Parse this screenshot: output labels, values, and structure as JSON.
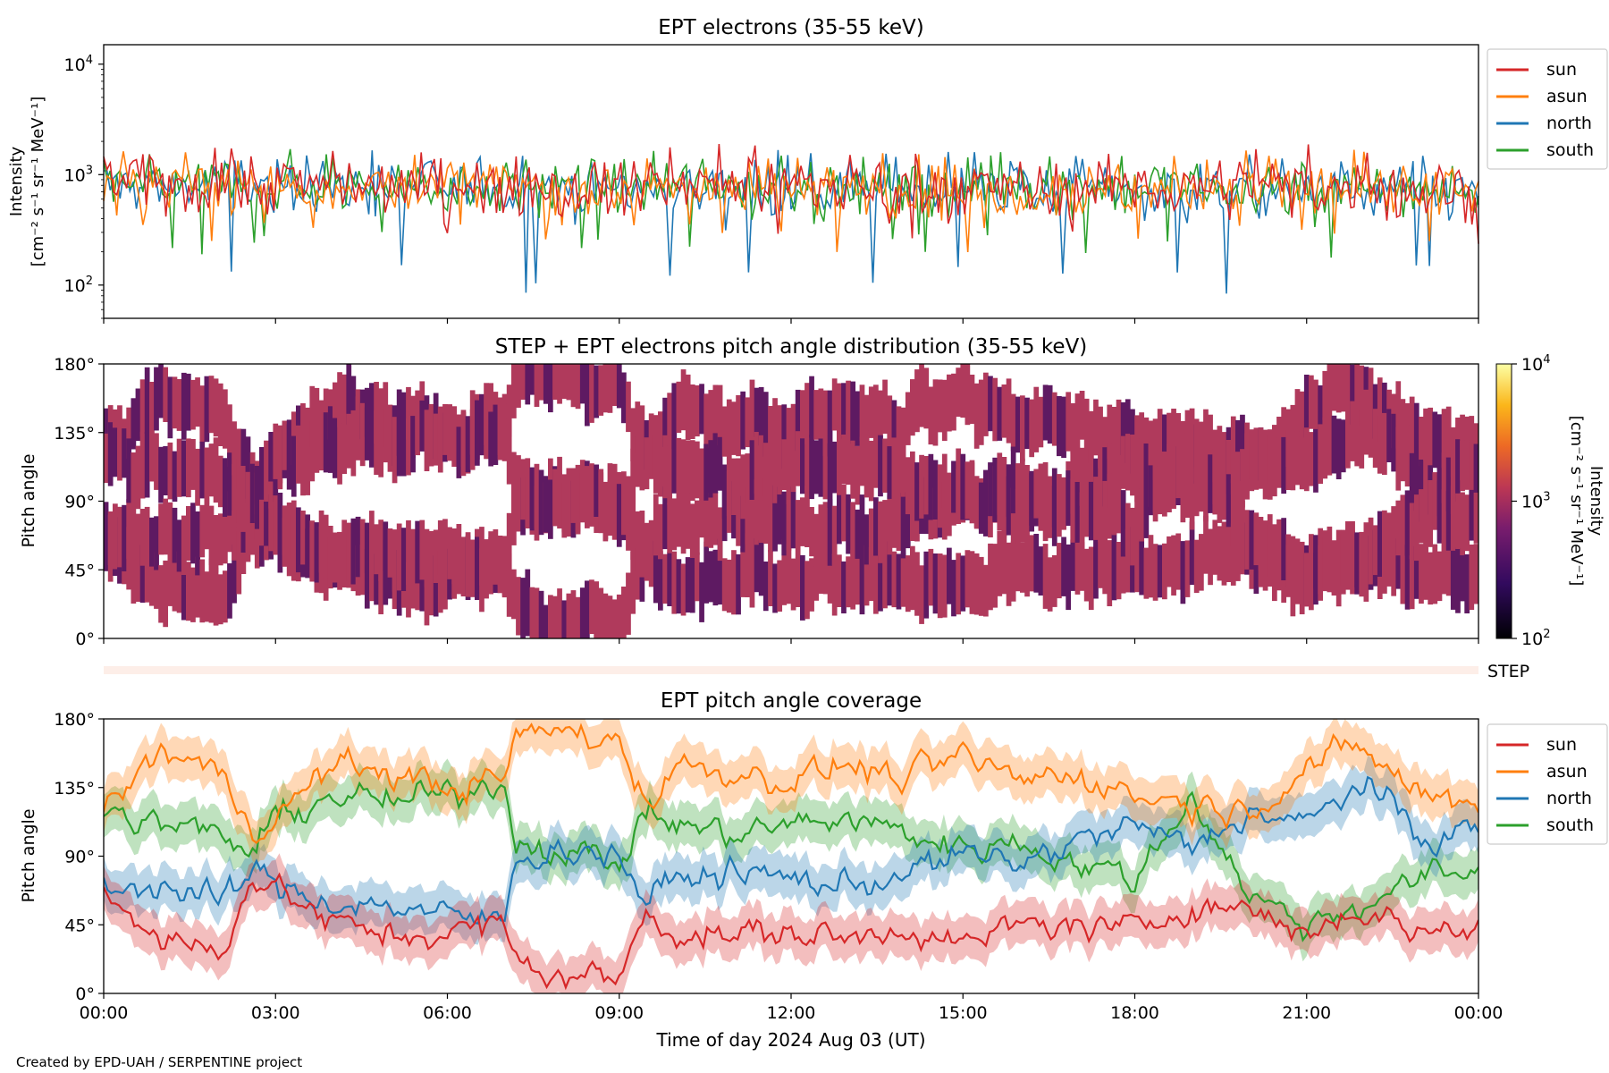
{
  "colors": {
    "sun": "#d62728",
    "asun": "#ff7f0e",
    "north": "#1f77b4",
    "south": "#2ca02c",
    "pad_fill": "#b03a5c",
    "pad_dark": "#5e1a62",
    "step_strip": "#fdeee8"
  },
  "footer": "Created by EPD-UAH / SERPENTINE project",
  "step_label": "STEP",
  "chart_data": [
    {
      "type": "line",
      "title": "EPT electrons (35-55 keV)",
      "ylabel_line1": "Intensity",
      "ylabel_line2": "[cm⁻² s⁻¹ sr⁻¹ MeV⁻¹]",
      "yscale": "log",
      "ylim": [
        50,
        15000
      ],
      "yticks": [
        {
          "value": 100,
          "base": "10",
          "exp": "2"
        },
        {
          "value": 1000,
          "base": "10",
          "exp": "3"
        },
        {
          "value": 10000,
          "base": "10",
          "exp": "4"
        }
      ],
      "x_range_hours": [
        0,
        24
      ],
      "legend": [
        "sun",
        "asun",
        "north",
        "south"
      ],
      "legend_position": "outside-right-top",
      "series_summary": [
        {
          "name": "sun",
          "typical": 850,
          "min": 230,
          "max": 1900
        },
        {
          "name": "asun",
          "typical": 800,
          "min": 180,
          "max": 1700
        },
        {
          "name": "north",
          "typical": 800,
          "min": 80,
          "max": 1800
        },
        {
          "name": "south",
          "typical": 820,
          "min": 170,
          "max": 1700
        }
      ]
    },
    {
      "type": "heatmap",
      "title": "STEP + EPT electrons pitch angle distribution (35-55 keV)",
      "ylabel": "Pitch angle",
      "ylim": [
        0,
        180
      ],
      "yticks": [
        "0°",
        "45°",
        "90°",
        "135°",
        "180°"
      ],
      "colorbar": {
        "scale": "log",
        "range": [
          100,
          10000
        ],
        "ticks": [
          {
            "base": "10",
            "exp": "2"
          },
          {
            "base": "10",
            "exp": "3"
          },
          {
            "base": "10",
            "exp": "4"
          }
        ],
        "label_line1": "Intensity",
        "label_line2": "[cm⁻² s⁻¹ sr⁻¹ MeV⁻¹]"
      }
    },
    {
      "type": "line",
      "title": "EPT pitch angle coverage",
      "ylabel": "Pitch angle",
      "ylim": [
        0,
        180
      ],
      "yticks": [
        "0°",
        "45°",
        "90°",
        "135°",
        "180°"
      ],
      "xlabel": "Time of day 2024 Aug 03 (UT)",
      "xticks": [
        "00:00",
        "03:00",
        "06:00",
        "09:00",
        "12:00",
        "15:00",
        "18:00",
        "21:00",
        "00:00"
      ],
      "legend": [
        "sun",
        "asun",
        "north",
        "south"
      ],
      "legend_position": "outside-right-top",
      "keypoints_hours": [
        0,
        1,
        2,
        2.6,
        3,
        4,
        5,
        6,
        7,
        7.2,
        8,
        9,
        9.5,
        10,
        11,
        12,
        13,
        14,
        15,
        16,
        17,
        18,
        19,
        20,
        21,
        22,
        23,
        24
      ],
      "series": [
        {
          "name": "sun",
          "values": [
            68,
            35,
            28,
            75,
            70,
            45,
            38,
            40,
            45,
            20,
            12,
            10,
            55,
            40,
            38,
            40,
            35,
            45,
            30,
            45,
            45,
            40,
            60,
            55,
            40,
            55,
            40,
            45
          ]
        },
        {
          "name": "asun",
          "values": [
            118,
            160,
            145,
            110,
            115,
            150,
            145,
            135,
            140,
            170,
            172,
            165,
            125,
            150,
            145,
            140,
            150,
            140,
            155,
            140,
            145,
            130,
            125,
            120,
            150,
            160,
            130,
            125
          ]
        },
        {
          "name": "north",
          "values": [
            72,
            70,
            60,
            80,
            70,
            60,
            58,
            50,
            48,
            90,
            95,
            90,
            60,
            75,
            80,
            75,
            70,
            80,
            90,
            85,
            100,
            110,
            95,
            120,
            110,
            140,
            100,
            110
          ]
        },
        {
          "name": "south",
          "values": [
            120,
            110,
            105,
            90,
            115,
            130,
            125,
            130,
            140,
            100,
            95,
            85,
            120,
            110,
            105,
            110,
            115,
            105,
            95,
            100,
            85,
            75,
            130,
            65,
            45,
            60,
            75,
            80
          ]
        }
      ]
    }
  ]
}
